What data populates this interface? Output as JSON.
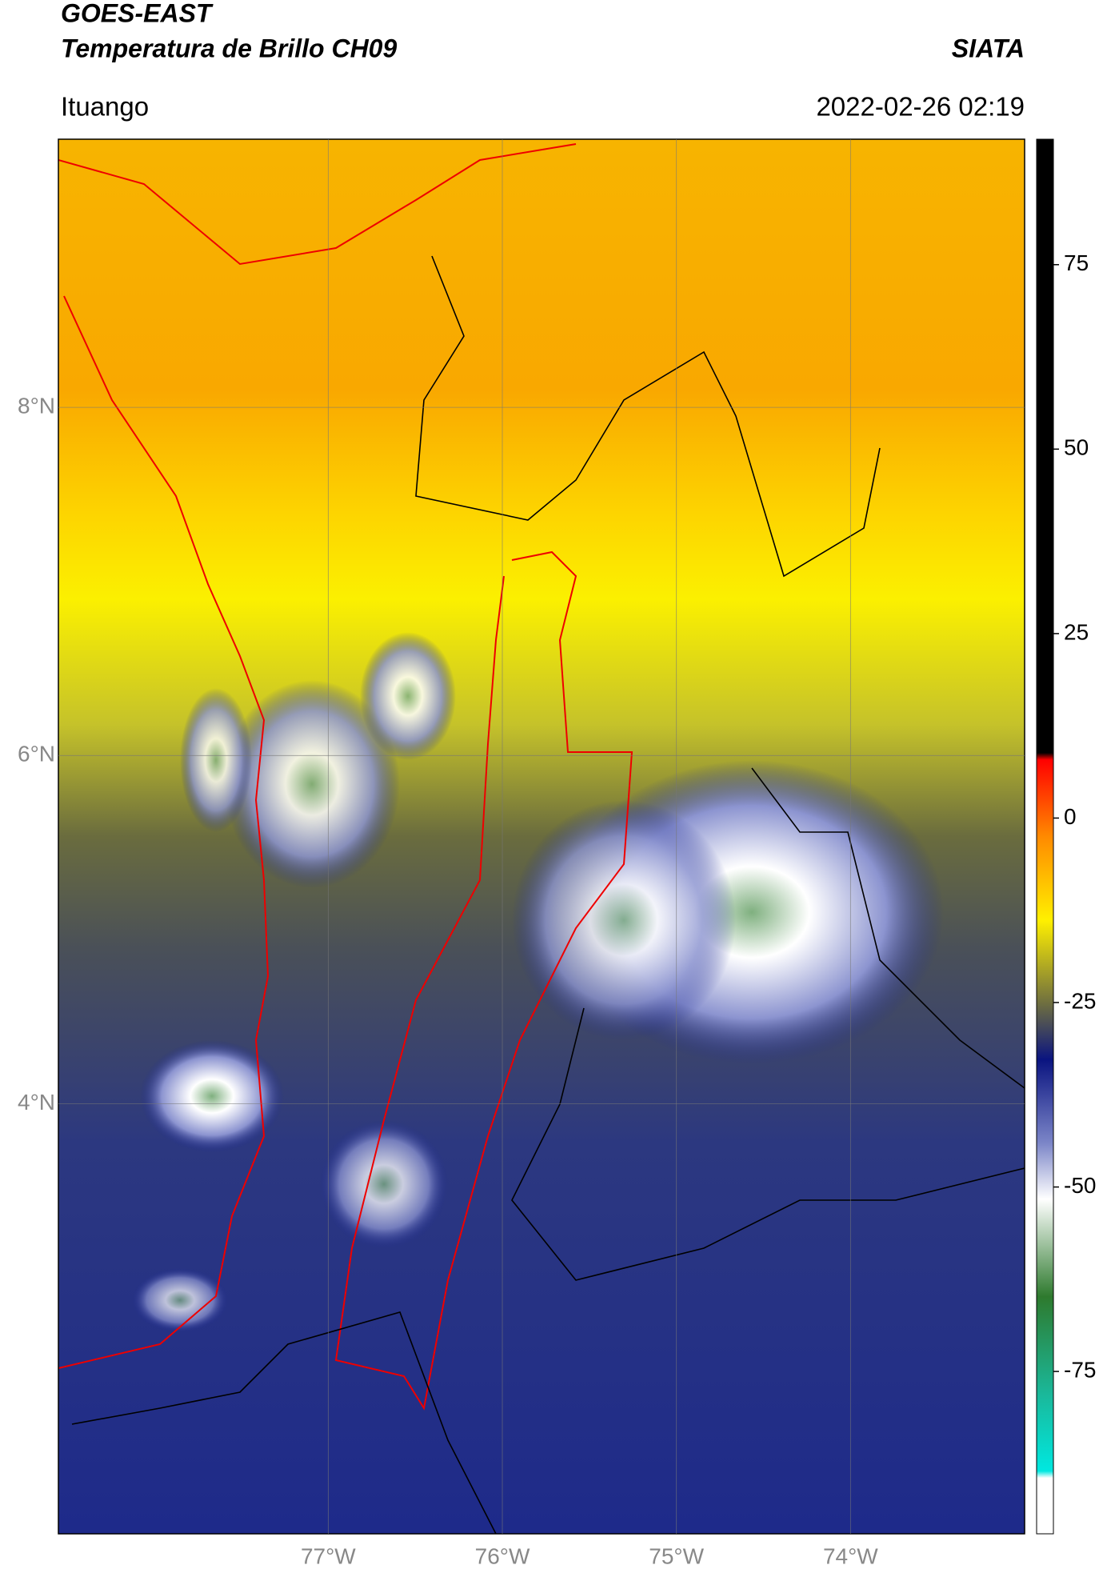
{
  "header": {
    "satellite": "GOES-EAST",
    "product": "Temperatura de Brillo CH09",
    "agency": "SIATA",
    "region": "Ituango",
    "datetime": "2022-02-26 02:19"
  },
  "map": {
    "xlim": [
      -78.55,
      -73.0
    ],
    "ylim": [
      1.53,
      9.54
    ],
    "xticks": [
      {
        "value": -77,
        "label": "77°W"
      },
      {
        "value": -76,
        "label": "76°W"
      },
      {
        "value": -75,
        "label": "75°W"
      },
      {
        "value": -74,
        "label": "74°W"
      }
    ],
    "yticks": [
      {
        "value": 8,
        "label": "8°N"
      },
      {
        "value": 6,
        "label": "6°N"
      },
      {
        "value": 4,
        "label": "4°N"
      }
    ],
    "grid": true
  },
  "colorbar": {
    "lim": [
      -97,
      92
    ],
    "ticks": [
      75,
      50,
      25,
      0,
      -25,
      -50,
      -75
    ]
  }
}
